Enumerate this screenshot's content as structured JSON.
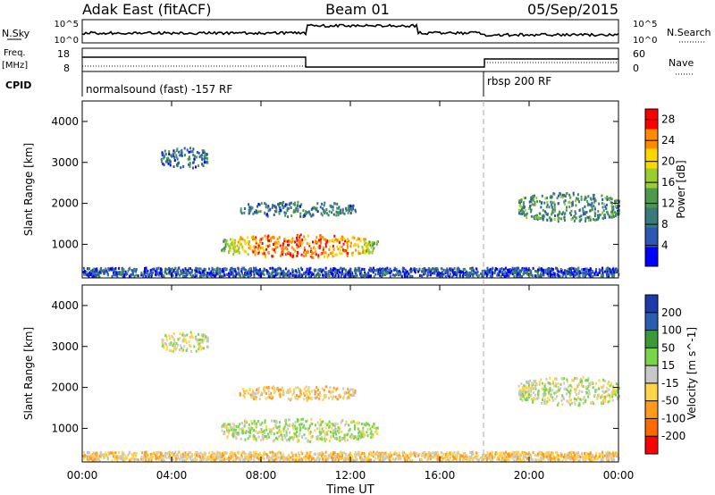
{
  "header": {
    "station": "Adak East (fitACF)",
    "beam": "Beam 01",
    "date": "05/Sep/2015"
  },
  "summary_panels": {
    "nsky_label": "N.Sky",
    "nsearch_label": "N.Search",
    "nsky_ticks": [
      "10^5",
      "10^0"
    ],
    "nsearch_ticks": [
      "10^5",
      "10^0"
    ],
    "freq_label_1": "Freq.",
    "freq_label_2": "[MHz]",
    "freq_ticks": [
      "18",
      "8"
    ],
    "nave_label": "Nave",
    "nave_ticks": [
      "60",
      "0"
    ],
    "cpid_label": "CPID",
    "cpid_segments": [
      {
        "label": "normalsound (fast) -157 RF",
        "start_hour": 0,
        "end_hour": 18
      },
      {
        "label": "rbsp 200 RF",
        "start_hour": 18,
        "end_hour": 24
      }
    ]
  },
  "chart_data": [
    {
      "type": "heatmap",
      "title": "",
      "xlabel": "Time UT",
      "ylabel": "Slant Range [km]",
      "xlim": [
        0,
        24
      ],
      "ylim": [
        180,
        4500
      ],
      "x_ticks": [
        "00:00",
        "04:00",
        "08:00",
        "12:00",
        "16:00",
        "20:00",
        "00:00"
      ],
      "y_ticks": [
        1000,
        2000,
        3000,
        4000
      ],
      "colorbar": {
        "label": "Power [dB]",
        "ticks": [
          4,
          8,
          12,
          16,
          20,
          24,
          28
        ],
        "range": [
          0,
          30
        ]
      },
      "regions": [
        {
          "t_start": 6.2,
          "t_end": 13.2,
          "r_center": 950,
          "r_half": 280,
          "value": 22
        },
        {
          "t_start": 7.0,
          "t_end": 12.2,
          "r_center": 1850,
          "r_half": 180,
          "value": 9
        },
        {
          "t_start": 3.5,
          "t_end": 5.6,
          "r_center": 3100,
          "r_half": 250,
          "value": 8
        },
        {
          "t_start": 19.5,
          "t_end": 24.0,
          "r_center": 1900,
          "r_half": 350,
          "value": 11
        },
        {
          "t_start": 0.0,
          "t_end": 24.0,
          "r_center": 310,
          "r_half": 110,
          "value": 6
        }
      ]
    },
    {
      "type": "heatmap",
      "title": "",
      "xlabel": "Time UT",
      "ylabel": "Slant Range [km]",
      "xlim": [
        0,
        24
      ],
      "ylim": [
        180,
        4500
      ],
      "x_ticks": [
        "00:00",
        "04:00",
        "08:00",
        "12:00",
        "16:00",
        "20:00",
        "00:00"
      ],
      "y_ticks": [
        1000,
        2000,
        3000,
        4000
      ],
      "colorbar": {
        "label": "Velocity [m s^-1]",
        "ticks": [
          200,
          100,
          50,
          15,
          -15,
          -50,
          -100,
          -200
        ]
      },
      "regions": [
        {
          "t_start": 6.2,
          "t_end": 13.2,
          "r_center": 950,
          "r_half": 280,
          "value": 0
        },
        {
          "t_start": 7.0,
          "t_end": 12.2,
          "r_center": 1850,
          "r_half": 180,
          "value": -40
        },
        {
          "t_start": 3.5,
          "t_end": 5.6,
          "r_center": 3100,
          "r_half": 250,
          "value": 0
        },
        {
          "t_start": 19.5,
          "t_end": 24.0,
          "r_center": 1900,
          "r_half": 350,
          "value": 0
        },
        {
          "t_start": 0.0,
          "t_end": 24.0,
          "r_center": 310,
          "r_half": 110,
          "value": -30
        }
      ]
    }
  ],
  "colors": {
    "power_scale": [
      "#0000ff",
      "#2c57b4",
      "#3a7a7a",
      "#4b9b4b",
      "#9acd32",
      "#ffd700",
      "#ff8c00",
      "#ff0000"
    ],
    "velocity_scale": [
      "#1c3aa8",
      "#2a5fb0",
      "#3a9a3a",
      "#7ad44a",
      "#c8c8c8",
      "#ffd34a",
      "#ff9a1a",
      "#ff6a00",
      "#ff0000"
    ]
  }
}
